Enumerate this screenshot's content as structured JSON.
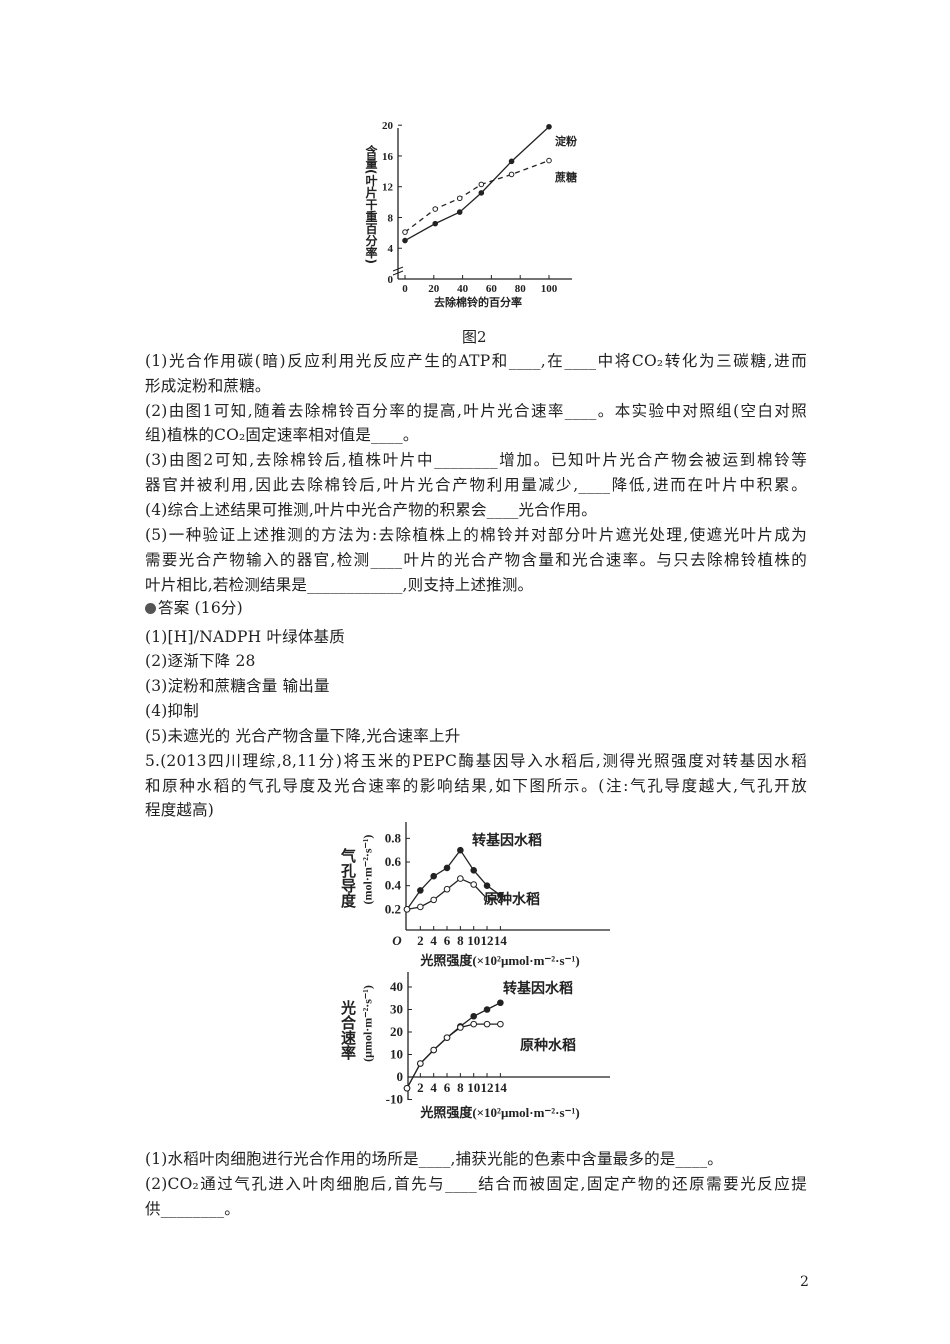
{
  "figure2_caption": "图2",
  "question_lines": [
    "(1)光合作用碳(暗)反应利用光反应产生的ATP和____,在____中将CO₂转化为三碳糖,进而",
    "形成淀粉和蔗糖。",
    "(2)由图1可知,随着去除棉铃百分率的提高,叶片光合速率____。本实验中对照组(空白对照",
    "组)植株的CO₂固定速率相对值是____。",
    "(3)由图2可知,去除棉铃后,植株叶片中________增加。已知叶片光合产物会被运到棉铃等",
    "器官并被利用,因此去除棉铃后,叶片光合产物利用量减少,____降低,进而在叶片中积累。",
    "(4)综合上述结果可推测,叶片中光合产物的积累会____光合作用。",
    "(5)一种验证上述推测的方法为:去除植株上的棉铃并对部分叶片遮光处理,使遮光叶片成为",
    "需要光合产物输入的器官,检测____叶片的光合产物含量和光合速率。与只去除棉铃植株的",
    "叶片相比,若检测结果是____________,则支持上述推测。"
  ],
  "answer_header": "答案 (16分)",
  "answer_lines": [
    "(1)[H]/NADPH 叶绿体基质",
    "(2)逐渐下降 28",
    "(3)淀粉和蔗糖含量 输出量",
    "(4)抑制",
    "(5)未遮光的 光合产物含量下降,光合速率上升"
  ],
  "q5_lines": [
    "5.(2013四川理综,8,11分)将玉米的PEPC酶基因导入水稻后,测得光照强度对转基因水稻",
    "和原种水稻的气孔导度及光合速率的影响结果,如下图所示。(注:气孔导度越大,气孔开放",
    "程度越高)"
  ],
  "q5_sub_lines": [
    "(1)水稻叶肉细胞进行光合作用的场所是____,捕获光能的色素中含量最多的是____。",
    "(2)CO₂通过气孔进入叶肉细胞后,首先与____结合而被固定,固定产物的还原需要光反应提",
    "供________。"
  ],
  "page_number": "2",
  "chart_data": [
    {
      "type": "line",
      "ylabel": "含量(叶片干重百分率)",
      "xlabel": "去除棉铃的百分率",
      "x_ticks": [
        "0",
        "20",
        "40",
        "60",
        "80",
        "100"
      ],
      "y_ticks": [
        "0",
        "4",
        "8",
        "12",
        "16",
        "20"
      ],
      "ylim": [
        0,
        20
      ],
      "xlim": [
        0,
        100
      ],
      "axis_break": true,
      "series": [
        {
          "name": "淀粉",
          "style": "solid",
          "marker": "filled",
          "x": [
            0,
            21,
            38,
            53,
            74,
            100
          ],
          "y": [
            5.0,
            7.2,
            8.7,
            11.2,
            15.3,
            19.8
          ]
        },
        {
          "name": "蔗糖",
          "style": "dashed",
          "marker": "open",
          "x": [
            0,
            21,
            38,
            53,
            74,
            100
          ],
          "y": [
            6.1,
            9.1,
            10.5,
            12.3,
            13.6,
            15.4
          ]
        }
      ]
    },
    {
      "type": "line",
      "ylabel": "气孔导度",
      "yunit": "(mol·m⁻²·s⁻¹)",
      "xlabel": "光照强度(×10²μmol·m⁻²·s⁻¹)",
      "origin_label": "O",
      "x_ticks": [
        "2",
        "4",
        "6",
        "8",
        "10",
        "12",
        "14"
      ],
      "y_ticks": [
        "0.2",
        "0.4",
        "0.6",
        "0.8"
      ],
      "series": [
        {
          "name": "转基因水稻",
          "marker": "filled",
          "x": [
            0,
            2,
            4,
            6,
            8,
            10,
            12,
            14
          ],
          "y": [
            0.2,
            0.36,
            0.48,
            0.55,
            0.7,
            0.53,
            0.4,
            0.32
          ]
        },
        {
          "name": "原种水稻",
          "marker": "open",
          "x": [
            0,
            2,
            4,
            6,
            8,
            10,
            12,
            14
          ],
          "y": [
            0.2,
            0.22,
            0.28,
            0.37,
            0.46,
            0.41,
            0.29,
            0.28
          ]
        }
      ]
    },
    {
      "type": "line",
      "ylabel": "光合速率",
      "yunit": "(μmol·m⁻²·s⁻¹)",
      "xlabel": "光照强度(×10²μmol·m⁻²·s⁻¹)",
      "x_ticks": [
        "2",
        "4",
        "6",
        "8",
        "10",
        "12",
        "14"
      ],
      "y_ticks": [
        "-10",
        "0",
        "10",
        "20",
        "30",
        "40"
      ],
      "series": [
        {
          "name": "转基因水稻",
          "marker": "filled",
          "x": [
            0,
            2,
            4,
            6,
            8,
            10,
            12,
            14
          ],
          "y": [
            -5,
            6,
            12,
            17.5,
            22.5,
            27,
            30,
            33
          ]
        },
        {
          "name": "原种水稻",
          "marker": "open",
          "x": [
            0,
            2,
            4,
            6,
            8,
            10,
            12,
            14
          ],
          "y": [
            -5,
            6,
            12,
            17.5,
            22,
            23.5,
            23.5,
            23.5
          ]
        }
      ]
    }
  ]
}
